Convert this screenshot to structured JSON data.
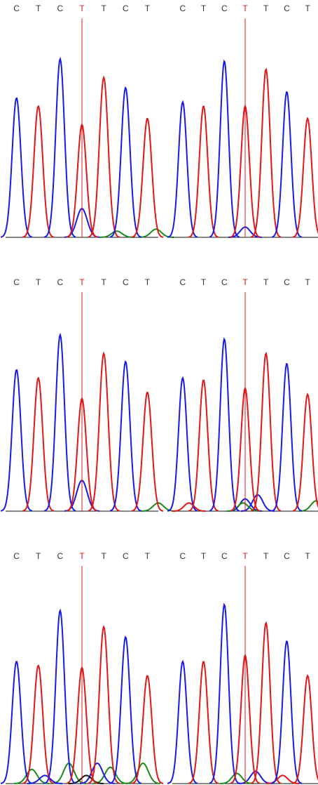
{
  "colors": {
    "C": "#1a1ae6",
    "T": "#e01818",
    "G": "#1a8a1a",
    "A": "#111111",
    "marker": "#e01818",
    "label": "#333333",
    "highlight": "#e01818",
    "baseline": "#111111"
  },
  "chart_data": [
    {
      "type": "line",
      "title": "",
      "bases": [
        "C",
        "T",
        "C",
        "T",
        "T",
        "C",
        "T"
      ],
      "highlight_index": 3,
      "peaks": [
        {
          "base": "C",
          "height": 0.68
        },
        {
          "base": "T",
          "height": 0.64
        },
        {
          "base": "C",
          "height": 0.87
        },
        {
          "base": "T",
          "height": 0.55
        },
        {
          "base": "T",
          "height": 0.78
        },
        {
          "base": "C",
          "height": 0.73
        },
        {
          "base": "T",
          "height": 0.58
        }
      ],
      "secondary": [
        {
          "base": "C",
          "position": 3,
          "height": 0.14
        },
        {
          "base": "G",
          "position": 4.6,
          "height": 0.03
        },
        {
          "base": "G",
          "position": 6.4,
          "height": 0.04
        }
      ]
    },
    {
      "type": "line",
      "title": "",
      "bases": [
        "C",
        "T",
        "C",
        "T",
        "T",
        "C",
        "T"
      ],
      "highlight_index": 3,
      "peaks": [
        {
          "base": "C",
          "height": 0.66
        },
        {
          "base": "T",
          "height": 0.64
        },
        {
          "base": "C",
          "height": 0.86
        },
        {
          "base": "T",
          "height": 0.64
        },
        {
          "base": "T",
          "height": 0.82
        },
        {
          "base": "C",
          "height": 0.71
        },
        {
          "base": "T",
          "height": 0.58
        }
      ],
      "secondary": [
        {
          "base": "C",
          "position": 3,
          "height": 0.05
        }
      ]
    },
    {
      "type": "line",
      "title": "",
      "bases": [
        "C",
        "T",
        "C",
        "T",
        "T",
        "C",
        "T"
      ],
      "highlight_index": 3,
      "peaks": [
        {
          "base": "C",
          "height": 0.69
        },
        {
          "base": "T",
          "height": 0.65
        },
        {
          "base": "C",
          "height": 0.86
        },
        {
          "base": "T",
          "height": 0.55
        },
        {
          "base": "T",
          "height": 0.77
        },
        {
          "base": "C",
          "height": 0.73
        },
        {
          "base": "T",
          "height": 0.58
        }
      ],
      "secondary": [
        {
          "base": "C",
          "position": 3,
          "height": 0.15
        },
        {
          "base": "G",
          "position": 6.5,
          "height": 0.04
        }
      ]
    },
    {
      "type": "line",
      "title": "",
      "bases": [
        "C",
        "T",
        "C",
        "T",
        "T",
        "C",
        "T"
      ],
      "highlight_index": 3,
      "peaks": [
        {
          "base": "C",
          "height": 0.65
        },
        {
          "base": "T",
          "height": 0.64
        },
        {
          "base": "C",
          "height": 0.84
        },
        {
          "base": "T",
          "height": 0.6
        },
        {
          "base": "T",
          "height": 0.77
        },
        {
          "base": "C",
          "height": 0.72
        },
        {
          "base": "T",
          "height": 0.57
        }
      ],
      "secondary": [
        {
          "base": "C",
          "position": 3,
          "height": 0.06
        },
        {
          "base": "C",
          "position": 3.6,
          "height": 0.08
        },
        {
          "base": "G",
          "position": 2.9,
          "height": 0.04
        },
        {
          "base": "G",
          "position": 6.4,
          "height": 0.05
        },
        {
          "base": "T",
          "position": 0.3,
          "height": 0.04
        }
      ]
    },
    {
      "type": "line",
      "title": "",
      "bases": [
        "C",
        "T",
        "C",
        "T",
        "T",
        "C",
        "T"
      ],
      "highlight_index": 3,
      "peaks": [
        {
          "base": "C",
          "height": 0.6
        },
        {
          "base": "T",
          "height": 0.58
        },
        {
          "base": "C",
          "height": 0.85
        },
        {
          "base": "T",
          "height": 0.57
        },
        {
          "base": "T",
          "height": 0.77
        },
        {
          "base": "C",
          "height": 0.72
        },
        {
          "base": "T",
          "height": 0.53
        }
      ],
      "secondary": [
        {
          "base": "G",
          "position": 0.7,
          "height": 0.07
        },
        {
          "base": "G",
          "position": 2.4,
          "height": 0.1
        },
        {
          "base": "G",
          "position": 4.3,
          "height": 0.08
        },
        {
          "base": "G",
          "position": 5.8,
          "height": 0.1
        },
        {
          "base": "C",
          "position": 3.7,
          "height": 0.1
        },
        {
          "base": "C",
          "position": 1.3,
          "height": 0.04
        },
        {
          "base": "A",
          "position": 3.2,
          "height": 0.04
        }
      ]
    },
    {
      "type": "line",
      "title": "",
      "bases": [
        "C",
        "T",
        "C",
        "T",
        "T",
        "C",
        "T"
      ],
      "highlight_index": 3,
      "peaks": [
        {
          "base": "C",
          "height": 0.6
        },
        {
          "base": "T",
          "height": 0.6
        },
        {
          "base": "C",
          "height": 0.88
        },
        {
          "base": "T",
          "height": 0.63
        },
        {
          "base": "T",
          "height": 0.79
        },
        {
          "base": "C",
          "height": 0.7
        },
        {
          "base": "T",
          "height": 0.53
        }
      ],
      "secondary": [
        {
          "base": "C",
          "position": 3.5,
          "height": 0.06
        },
        {
          "base": "G",
          "position": 2.6,
          "height": 0.05
        },
        {
          "base": "T",
          "position": 4.8,
          "height": 0.04
        }
      ]
    }
  ]
}
